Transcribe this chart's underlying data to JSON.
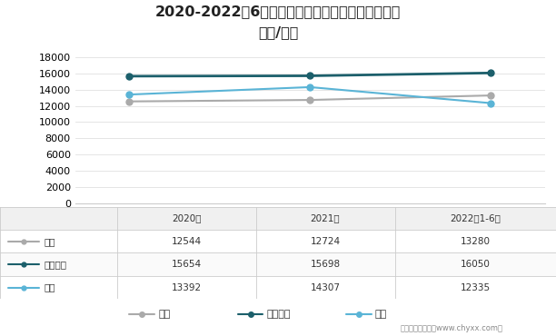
{
  "title_line1": "2020-2022年6月立高食品烘焙食品原料分产品均价",
  "title_line2": "（元/吨）",
  "x_labels": [
    "2020年",
    "2021年",
    "2022年1-6月"
  ],
  "series": [
    {
      "name": "奶油",
      "values": [
        12544,
        12724,
        13280
      ],
      "color": "#aaaaaa",
      "marker": "o",
      "linewidth": 1.5,
      "markersize": 5
    },
    {
      "name": "水果制品",
      "values": [
        15654,
        15698,
        16050
      ],
      "color": "#1c5f6b",
      "marker": "o",
      "linewidth": 2,
      "markersize": 5
    },
    {
      "name": "酱料",
      "values": [
        13392,
        14307,
        12335
      ],
      "color": "#5ab4d6",
      "marker": "o",
      "linewidth": 1.5,
      "markersize": 5
    }
  ],
  "table_rows": [
    [
      "奶油",
      "12544",
      "12724",
      "13280"
    ],
    [
      "水果制品",
      "15654",
      "15698",
      "16050"
    ],
    [
      "酱料",
      "13392",
      "14307",
      "12335"
    ]
  ],
  "table_header": [
    "",
    "2020年",
    "2021年",
    "2022年1-6月"
  ],
  "ylim": [
    0,
    18000
  ],
  "yticks": [
    0,
    2000,
    4000,
    6000,
    8000,
    10000,
    12000,
    14000,
    16000,
    18000
  ],
  "background_color": "#ffffff",
  "watermark": "制图：智研咨询（www.chyxx.com）",
  "border_color": "#cccccc",
  "grid_color": "#e0e0e0"
}
